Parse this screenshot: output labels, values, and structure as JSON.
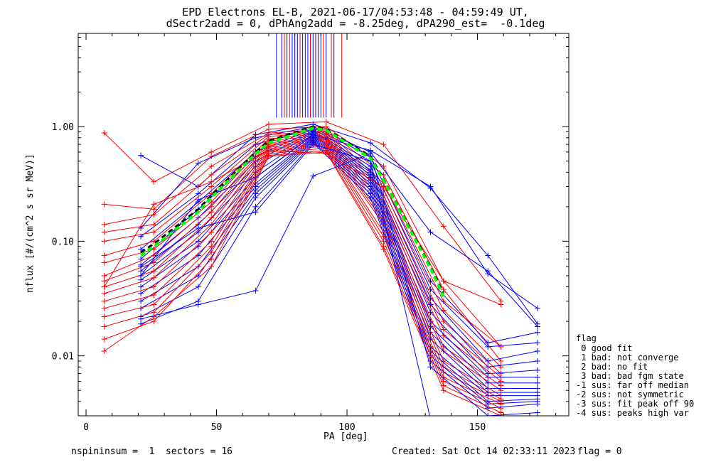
{
  "title_line1": "EPD Electrons EL-B, 2021-06-17/04:53:48 - 04:59:49 UT,",
  "title_line2": "dSectr2add = 0, dPhAng2add = -8.25deg, dPA290_est=  -0.1deg",
  "footer": {
    "left": "nspininsum =  1  sectors = 16",
    "created": "Created: Sat Oct 14 02:33:11 2023",
    "flag": "flag = 0"
  },
  "legend": {
    "header": "flag",
    "items": [
      " 0 good fit",
      " 1 bad: not converge",
      " 2 bad: no fit",
      " 3 bad: bad fgm state",
      "-1 sus: far off median",
      "-2 sus: not symmetric",
      "-3 sus: fit peak off 90",
      "-4 sus: peaks high var"
    ]
  },
  "colors": {
    "red": "#ff0000",
    "blue": "#0000ff",
    "green": "#00ff00",
    "black": "#000000"
  },
  "chart_data": {
    "type": "line",
    "xlabel": "PA [deg]",
    "ylabel": "nflux [#/(cm^2 s sr MeV)]",
    "xlim": [
      -3,
      185
    ],
    "ylim": [
      0.003,
      6.5
    ],
    "yscale": "log",
    "x_ticks": [
      0,
      50,
      100,
      150
    ],
    "y_ticks": [
      {
        "value": 0.01,
        "label": "0.01"
      },
      {
        "value": 0.1,
        "label": "0.10"
      },
      {
        "value": 1.0,
        "label": "1.00"
      }
    ],
    "pa_bins": [
      7,
      21,
      26,
      43,
      48,
      65,
      70,
      87,
      92,
      109,
      114,
      132,
      137,
      154,
      159,
      173
    ],
    "peak_markers_x": {
      "blue": [
        73,
        75,
        77,
        79,
        80,
        81,
        83,
        84,
        85,
        86,
        87,
        88,
        89,
        90,
        91,
        92,
        95
      ],
      "red": [
        76,
        78,
        82,
        86,
        91,
        94,
        98
      ]
    },
    "marker_range": [
      1.2,
      6.5
    ],
    "series": [
      {
        "color": "red",
        "x": [
          7,
          26,
          48,
          70,
          92,
          114,
          137,
          159
        ],
        "y": [
          0.88,
          0.33,
          0.6,
          1.05,
          1.1,
          0.7,
          0.135,
          0.03
        ]
      },
      {
        "color": "blue",
        "x": [
          21,
          43,
          65,
          87,
          109,
          132,
          154,
          173
        ],
        "y": [
          0.56,
          0.3,
          0.85,
          1.05,
          0.72,
          0.29,
          0.075,
          0.019
        ]
      },
      {
        "color": "red",
        "x": [
          7,
          26,
          48,
          70,
          92,
          114,
          137,
          159
        ],
        "y": [
          0.21,
          0.19,
          0.55,
          0.95,
          1.0,
          0.45,
          0.045,
          0.012
        ]
      },
      {
        "color": "blue",
        "x": [
          21,
          43,
          65,
          87,
          109,
          132,
          154,
          173
        ],
        "y": [
          0.13,
          0.48,
          0.8,
          1.0,
          0.6,
          0.12,
          0.055,
          0.018
        ]
      },
      {
        "color": "red",
        "x": [
          7,
          26,
          48,
          70,
          92,
          114,
          137,
          159
        ],
        "y": [
          0.14,
          0.17,
          0.45,
          0.88,
          0.95,
          0.38,
          0.038,
          0.009
        ]
      },
      {
        "color": "blue",
        "x": [
          21,
          43,
          65,
          87,
          109,
          132,
          154,
          173
        ],
        "y": [
          0.11,
          0.26,
          0.7,
          0.98,
          0.55,
          0.045,
          0.013,
          0.016
        ]
      },
      {
        "color": "red",
        "x": [
          7,
          26,
          48,
          70,
          92,
          114,
          137,
          159
        ],
        "y": [
          0.12,
          0.14,
          0.38,
          0.85,
          0.92,
          0.32,
          0.03,
          0.012
        ]
      },
      {
        "color": "blue",
        "x": [
          21,
          43,
          65,
          87,
          109,
          132,
          154,
          173
        ],
        "y": [
          0.085,
          0.22,
          0.6,
          0.95,
          0.5,
          0.038,
          0.012,
          0.013
        ]
      },
      {
        "color": "red",
        "x": [
          7,
          26,
          48,
          70,
          92,
          114,
          137,
          159
        ],
        "y": [
          0.1,
          0.12,
          0.3,
          0.82,
          0.9,
          0.28,
          0.025,
          0.008
        ]
      },
      {
        "color": "blue",
        "x": [
          21,
          43,
          65,
          87,
          109,
          132,
          154,
          173
        ],
        "y": [
          0.07,
          0.19,
          0.55,
          0.92,
          0.45,
          0.032,
          0.009,
          0.011
        ]
      },
      {
        "color": "red",
        "x": [
          7,
          26,
          48,
          70,
          92,
          114,
          137,
          159
        ],
        "y": [
          0.075,
          0.1,
          0.26,
          0.78,
          0.88,
          0.25,
          0.02,
          0.007
        ]
      },
      {
        "color": "blue",
        "x": [
          21,
          43,
          65,
          87,
          109,
          132,
          154,
          173
        ],
        "y": [
          0.062,
          0.16,
          0.5,
          0.9,
          0.42,
          0.028,
          0.008,
          0.009
        ]
      },
      {
        "color": "red",
        "x": [
          7,
          26,
          48,
          70,
          92,
          114,
          137,
          159
        ],
        "y": [
          0.065,
          0.085,
          0.22,
          0.75,
          0.85,
          0.22,
          0.017,
          0.0065
        ]
      },
      {
        "color": "blue",
        "x": [
          21,
          43,
          65,
          87,
          109,
          132,
          154,
          173
        ],
        "y": [
          0.055,
          0.14,
          0.45,
          0.88,
          0.4,
          0.024,
          0.007,
          0.0075
        ]
      },
      {
        "color": "red",
        "x": [
          7,
          26,
          48,
          70,
          92,
          114,
          137,
          159
        ],
        "y": [
          0.05,
          0.075,
          0.2,
          0.72,
          0.82,
          0.2,
          0.015,
          0.006
        ]
      },
      {
        "color": "blue",
        "x": [
          21,
          43,
          65,
          87,
          109,
          132,
          154,
          173
        ],
        "y": [
          0.05,
          0.12,
          0.4,
          0.86,
          0.38,
          0.02,
          0.0065,
          0.0065
        ]
      },
      {
        "color": "red",
        "x": [
          7,
          26,
          48,
          70,
          92,
          114,
          137,
          159
        ],
        "y": [
          0.045,
          0.065,
          0.18,
          0.7,
          0.8,
          0.18,
          0.012,
          0.0055
        ]
      },
      {
        "color": "blue",
        "x": [
          21,
          43,
          65,
          87,
          109,
          132,
          154,
          173
        ],
        "y": [
          0.046,
          0.1,
          0.36,
          0.84,
          0.36,
          0.018,
          0.0058,
          0.0058
        ]
      },
      {
        "color": "red",
        "x": [
          7,
          26,
          48,
          70,
          92,
          114,
          137,
          159
        ],
        "y": [
          0.04,
          0.055,
          0.16,
          0.68,
          0.78,
          0.16,
          0.011,
          0.005
        ]
      },
      {
        "color": "blue",
        "x": [
          21,
          43,
          65,
          87,
          109,
          132,
          154,
          173
        ],
        "y": [
          0.04,
          0.09,
          0.32,
          0.82,
          0.34,
          0.016,
          0.0052,
          0.0052
        ]
      },
      {
        "color": "red",
        "x": [
          7,
          26,
          48,
          70,
          92,
          114,
          137,
          159
        ],
        "y": [
          0.035,
          0.048,
          0.14,
          0.66,
          0.75,
          0.15,
          0.009,
          0.0045
        ]
      },
      {
        "color": "blue",
        "x": [
          21,
          43,
          65,
          87,
          109,
          132,
          154,
          173
        ],
        "y": [
          0.035,
          0.075,
          0.3,
          0.8,
          0.32,
          0.014,
          0.0048,
          0.0048
        ]
      },
      {
        "color": "red",
        "x": [
          7,
          26,
          48,
          70,
          92,
          114,
          137,
          159
        ],
        "y": [
          0.03,
          0.04,
          0.12,
          0.64,
          0.72,
          0.14,
          0.008,
          0.0042
        ]
      },
      {
        "color": "blue",
        "x": [
          21,
          43,
          65,
          87,
          109,
          132,
          154,
          173
        ],
        "y": [
          0.03,
          0.06,
          0.28,
          0.78,
          0.3,
          0.012,
          0.0045,
          0.0045
        ]
      },
      {
        "color": "red",
        "x": [
          7,
          26,
          48,
          70,
          92,
          114,
          137,
          159
        ],
        "y": [
          0.026,
          0.034,
          0.1,
          0.62,
          0.7,
          0.12,
          0.0072,
          0.004
        ]
      },
      {
        "color": "blue",
        "x": [
          21,
          43,
          65,
          87,
          109,
          132,
          154,
          173
        ],
        "y": [
          0.026,
          0.05,
          0.26,
          0.76,
          0.28,
          0.011,
          0.004,
          0.0042
        ]
      },
      {
        "color": "red",
        "x": [
          7,
          26,
          48,
          70,
          92,
          114,
          137,
          159
        ],
        "y": [
          0.022,
          0.028,
          0.09,
          0.6,
          0.68,
          0.11,
          0.0065,
          0.0038
        ]
      },
      {
        "color": "blue",
        "x": [
          21,
          43,
          65,
          87,
          109,
          132,
          154,
          173
        ],
        "y": [
          0.022,
          0.04,
          0.24,
          0.74,
          0.26,
          0.01,
          0.0038,
          0.004
        ]
      },
      {
        "color": "red",
        "x": [
          7,
          26,
          48,
          70,
          92,
          114,
          137,
          159
        ],
        "y": [
          0.018,
          0.024,
          0.08,
          0.58,
          0.65,
          0.1,
          0.006,
          0.0035
        ]
      },
      {
        "color": "blue",
        "x": [
          21,
          43,
          65,
          87,
          109,
          132,
          154,
          173
        ],
        "y": [
          0.019,
          0.03,
          0.2,
          0.72,
          0.24,
          0.009,
          0.0035,
          0.0038
        ]
      },
      {
        "color": "red",
        "x": [
          7,
          26,
          48,
          70,
          92,
          114,
          137,
          159
        ],
        "y": [
          0.014,
          0.02,
          0.07,
          0.56,
          0.62,
          0.09,
          0.0055,
          0.0032
        ]
      },
      {
        "color": "red",
        "x": [
          7,
          26,
          48,
          70,
          92,
          114,
          137,
          159
        ],
        "y": [
          0.011,
          0.022,
          0.06,
          0.55,
          0.6,
          0.085,
          0.005,
          0.003
        ]
      },
      {
        "color": "blue",
        "x": [
          21,
          43,
          65,
          87,
          109,
          132,
          154,
          173
        ],
        "y": [
          0.021,
          0.028,
          0.037,
          0.37,
          0.58,
          0.008,
          0.003,
          0.0032
        ]
      },
      {
        "color": "blue",
        "x": [
          21,
          43,
          65,
          87,
          109,
          132,
          154,
          173
        ],
        "y": [
          0.06,
          0.13,
          0.18,
          0.7,
          0.5,
          0.0028,
          0.0025,
          0.0026
        ]
      },
      {
        "color": "red",
        "x": [
          7,
          26,
          48,
          70,
          92,
          114,
          137,
          159
        ],
        "y": [
          0.04,
          0.21,
          0.33,
          0.62,
          0.58,
          0.3,
          0.045,
          0.028
        ]
      },
      {
        "color": "blue",
        "x": [
          21,
          43,
          65,
          87,
          109,
          132,
          154,
          173
        ],
        "y": [
          0.05,
          0.23,
          0.36,
          0.85,
          0.62,
          0.3,
          0.052,
          0.026
        ]
      }
    ],
    "median_curves": [
      {
        "color": "black",
        "style": "dashed",
        "x": [
          21,
          26,
          43,
          48,
          65,
          70,
          87,
          92,
          109,
          114,
          132,
          137
        ],
        "y": [
          0.08,
          0.095,
          0.19,
          0.25,
          0.6,
          0.75,
          1.0,
          0.95,
          0.55,
          0.35,
          0.06,
          0.035
        ]
      },
      {
        "color": "green",
        "style": "dashed",
        "x": [
          21,
          26,
          43,
          48,
          65,
          70,
          87,
          92,
          109,
          114,
          132,
          137
        ],
        "y": [
          0.075,
          0.09,
          0.18,
          0.24,
          0.58,
          0.72,
          0.97,
          0.93,
          0.53,
          0.34,
          0.058,
          0.033
        ]
      }
    ]
  }
}
